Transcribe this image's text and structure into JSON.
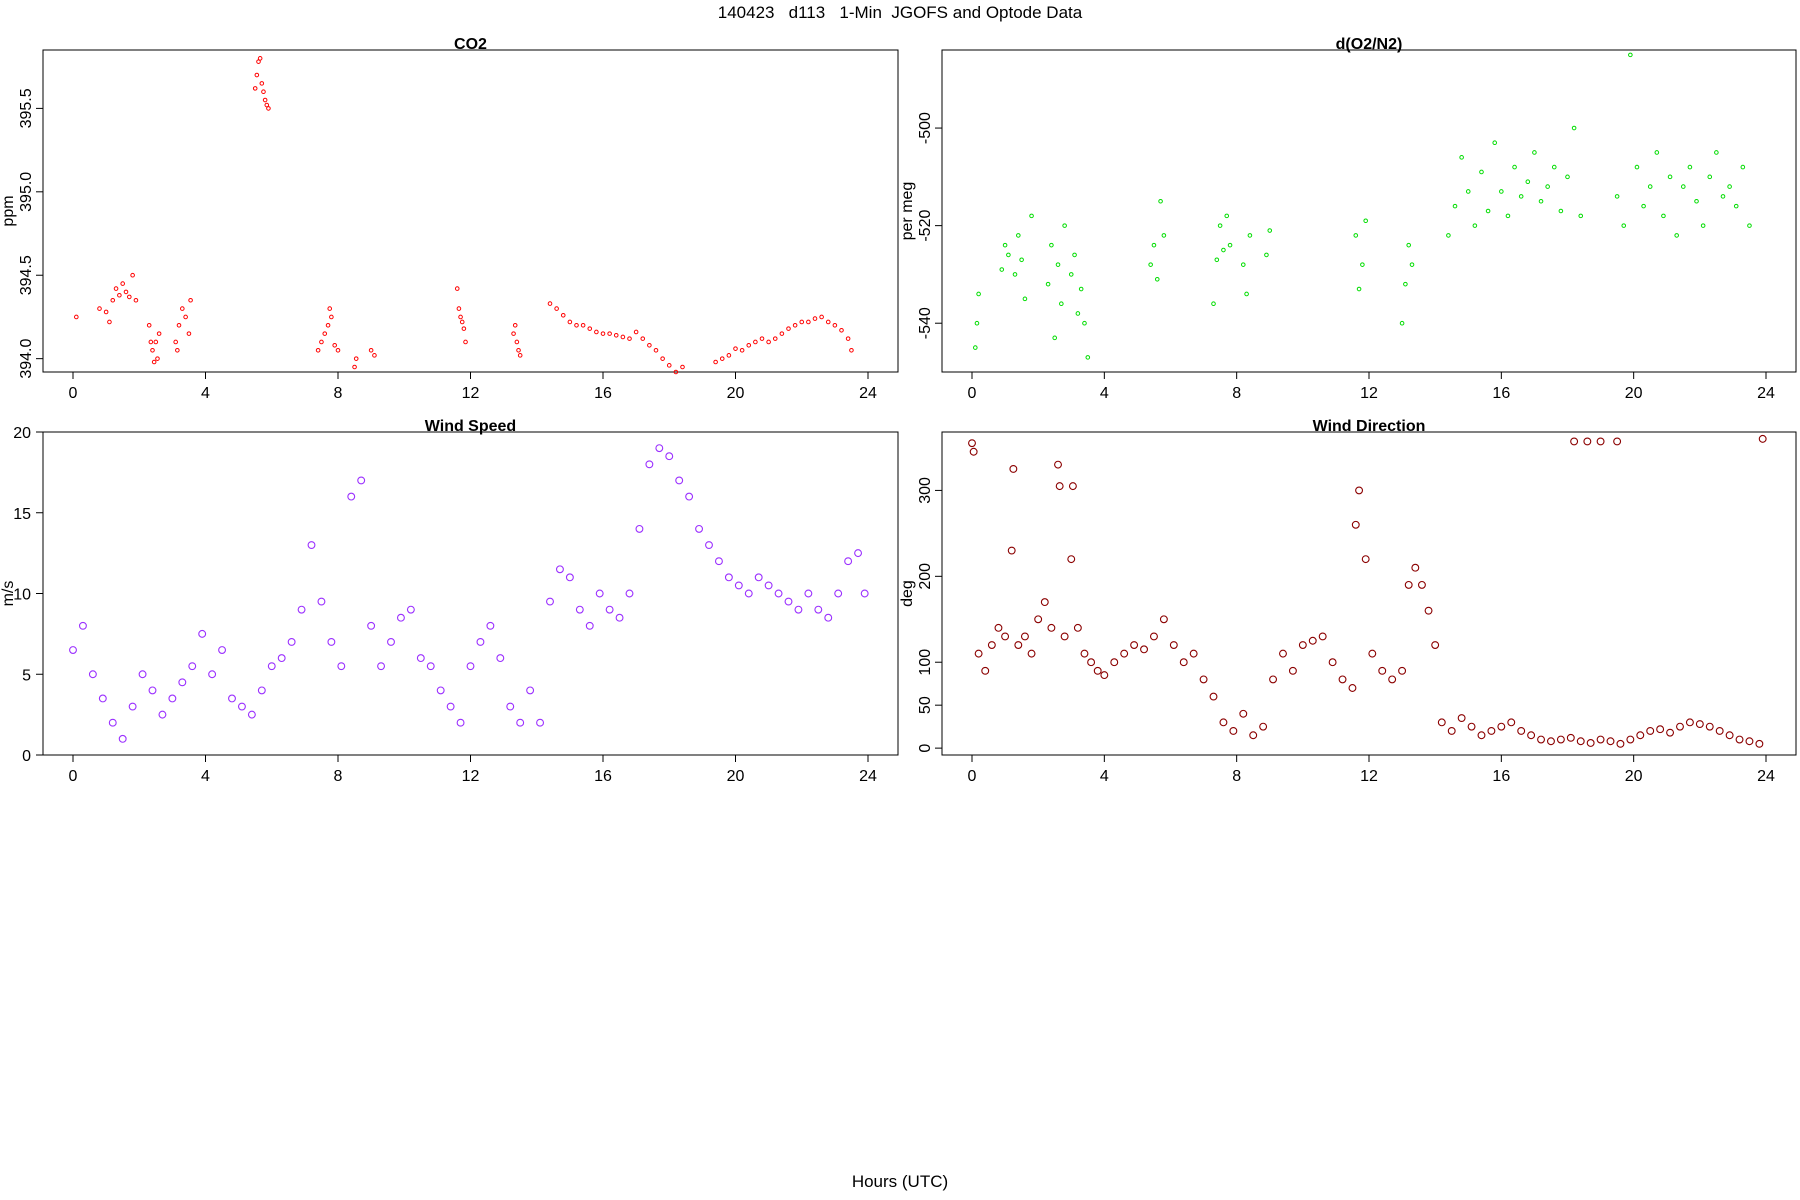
{
  "figure": {
    "title": "140423   d113   1-Min  JGOFS and Optode Data",
    "xlabel": "Hours (UTC)"
  },
  "chart_data": [
    {
      "type": "scatter",
      "title": "CO2",
      "ylabel": "ppm",
      "xlabel": "",
      "xlim": [
        0,
        24
      ],
      "ylim": [
        393.92,
        395.85
      ],
      "xticks": [
        0,
        4,
        8,
        12,
        16,
        20,
        24
      ],
      "yticks": [
        394.0,
        394.5,
        395.0,
        395.5
      ],
      "ytick_labels": [
        "394.0",
        "394.5",
        "395.0",
        "395.5"
      ],
      "color": "#ff0000",
      "marker": "small-circle",
      "series": [
        {
          "x": [
            0.1,
            0.8,
            1.0,
            1.1,
            1.2,
            1.3,
            1.4,
            1.5,
            1.6,
            1.7,
            1.8,
            1.9,
            2.3,
            2.35,
            2.4,
            2.45,
            2.5,
            2.55,
            2.6,
            3.1,
            3.15,
            3.2,
            3.3,
            3.4,
            3.5,
            3.55,
            5.5,
            5.55,
            5.6,
            5.65,
            5.7,
            5.75,
            5.8,
            5.85,
            5.9,
            7.4,
            7.5,
            7.6,
            7.7,
            7.75,
            7.8,
            7.9,
            8.0,
            8.5,
            8.55,
            9.0,
            9.1,
            11.6,
            11.65,
            11.7,
            11.75,
            11.8,
            11.85,
            13.3,
            13.35,
            13.4,
            13.45,
            13.5,
            14.4,
            14.6,
            14.8,
            15.0,
            15.2,
            15.4,
            15.6,
            15.8,
            16.0,
            16.2,
            16.4,
            16.6,
            16.8,
            17.0,
            17.2,
            17.4,
            17.6,
            17.8,
            18.0,
            18.2,
            18.4,
            19.4,
            19.6,
            19.8,
            20.0,
            20.2,
            20.4,
            20.6,
            20.8,
            21.0,
            21.2,
            21.4,
            21.6,
            21.8,
            22.0,
            22.2,
            22.4,
            22.6,
            22.8,
            23.0,
            23.2,
            23.4,
            23.5
          ],
          "y": [
            394.25,
            394.3,
            394.28,
            394.22,
            394.35,
            394.42,
            394.38,
            394.45,
            394.4,
            394.37,
            394.5,
            394.35,
            394.2,
            394.1,
            394.05,
            393.98,
            394.1,
            394.0,
            394.15,
            394.1,
            394.05,
            394.2,
            394.3,
            394.25,
            394.15,
            394.35,
            395.62,
            395.7,
            395.78,
            395.8,
            395.65,
            395.6,
            395.55,
            395.52,
            395.5,
            394.05,
            394.1,
            394.15,
            394.2,
            394.3,
            394.25,
            394.08,
            394.05,
            393.95,
            394.0,
            394.05,
            394.02,
            394.42,
            394.3,
            394.25,
            394.22,
            394.18,
            394.1,
            394.15,
            394.2,
            394.1,
            394.05,
            394.02,
            394.33,
            394.3,
            394.26,
            394.22,
            394.2,
            394.2,
            394.18,
            394.16,
            394.15,
            394.15,
            394.14,
            394.13,
            394.12,
            394.16,
            394.12,
            394.08,
            394.05,
            394.0,
            393.96,
            393.92,
            393.95,
            393.98,
            394.0,
            394.02,
            394.06,
            394.05,
            394.08,
            394.1,
            394.12,
            394.1,
            394.12,
            394.15,
            394.18,
            394.2,
            394.22,
            394.22,
            394.24,
            394.25,
            394.22,
            394.2,
            394.17,
            394.12,
            394.05
          ]
        }
      ]
    },
    {
      "type": "scatter",
      "title": "d(O2/N2)",
      "ylabel": "per meg",
      "xlabel": "",
      "xlim": [
        0,
        24
      ],
      "ylim": [
        -550,
        -484
      ],
      "xticks": [
        0,
        4,
        8,
        12,
        16,
        20,
        24
      ],
      "yticks": [
        -540,
        -520,
        -500
      ],
      "ytick_labels": [
        "-540",
        "-520",
        "-500"
      ],
      "color": "#00dd00",
      "marker": "small-circle",
      "series": [
        {
          "x": [
            0.1,
            0.15,
            0.2,
            0.9,
            1.0,
            1.1,
            1.3,
            1.4,
            1.5,
            1.6,
            1.8,
            2.3,
            2.4,
            2.5,
            2.6,
            2.7,
            2.8,
            3.0,
            3.1,
            3.2,
            3.3,
            3.4,
            3.5,
            5.4,
            5.5,
            5.6,
            5.7,
            5.8,
            7.3,
            7.4,
            7.5,
            7.6,
            7.7,
            7.8,
            8.2,
            8.3,
            8.4,
            8.9,
            9.0,
            11.6,
            11.7,
            11.8,
            11.9,
            13.0,
            13.1,
            13.2,
            13.3,
            14.4,
            14.6,
            14.8,
            15.0,
            15.2,
            15.4,
            15.6,
            15.8,
            16.0,
            16.2,
            16.4,
            16.6,
            16.8,
            17.0,
            17.2,
            17.4,
            17.6,
            17.8,
            18.0,
            18.2,
            18.4,
            19.5,
            19.7,
            19.9,
            20.1,
            20.3,
            20.5,
            20.7,
            20.9,
            21.1,
            21.3,
            21.5,
            21.7,
            21.9,
            22.1,
            22.3,
            22.5,
            22.7,
            22.9,
            23.1,
            23.3,
            23.5
          ],
          "y": [
            -545,
            -540,
            -534,
            -529,
            -524,
            -526,
            -530,
            -522,
            -527,
            -535,
            -518,
            -532,
            -524,
            -543,
            -528,
            -536,
            -520,
            -530,
            -526,
            -538,
            -533,
            -540,
            -547,
            -528,
            -524,
            -531,
            -515,
            -522,
            -536,
            -527,
            -520,
            -525,
            -518,
            -524,
            -528,
            -534,
            -522,
            -526,
            -521,
            -522,
            -533,
            -528,
            -519,
            -540,
            -532,
            -524,
            -528,
            -522,
            -516,
            -506,
            -513,
            -520,
            -509,
            -517,
            -503,
            -513,
            -518,
            -508,
            -514,
            -511,
            -505,
            -515,
            -512,
            -508,
            -517,
            -510,
            -500,
            -518,
            -514,
            -520,
            -485,
            -508,
            -516,
            -512,
            -505,
            -518,
            -510,
            -522,
            -512,
            -508,
            -515,
            -520,
            -510,
            -505,
            -514,
            -512,
            -516,
            -508,
            -520
          ]
        }
      ]
    },
    {
      "type": "scatter",
      "title": "Wind Speed",
      "ylabel": "m/s",
      "xlabel": "",
      "xlim": [
        0,
        24
      ],
      "ylim": [
        0,
        20
      ],
      "xticks": [
        0,
        4,
        8,
        12,
        16,
        20,
        24
      ],
      "yticks": [
        0,
        5,
        10,
        15,
        20
      ],
      "ytick_labels": [
        "0",
        "5",
        "10",
        "15",
        "20"
      ],
      "color": "#9b30ff",
      "marker": "circle",
      "series": [
        {
          "x": [
            0.0,
            0.3,
            0.6,
            0.9,
            1.2,
            1.5,
            1.8,
            2.1,
            2.4,
            2.7,
            3.0,
            3.3,
            3.6,
            3.9,
            4.2,
            4.5,
            4.8,
            5.1,
            5.4,
            5.7,
            6.0,
            6.3,
            6.6,
            6.9,
            7.2,
            7.5,
            7.8,
            8.1,
            8.4,
            8.7,
            9.0,
            9.3,
            9.6,
            9.9,
            10.2,
            10.5,
            10.8,
            11.1,
            11.4,
            11.7,
            12.0,
            12.3,
            12.6,
            12.9,
            13.2,
            13.5,
            13.8,
            14.1,
            14.4,
            14.7,
            15.0,
            15.3,
            15.6,
            15.9,
            16.2,
            16.5,
            16.8,
            17.1,
            17.4,
            17.7,
            18.0,
            18.3,
            18.6,
            18.9,
            19.2,
            19.5,
            19.8,
            20.1,
            20.4,
            20.7,
            21.0,
            21.3,
            21.6,
            21.9,
            22.2,
            22.5,
            22.8,
            23.1,
            23.4,
            23.7,
            23.9
          ],
          "y": [
            6.5,
            8.0,
            5.0,
            3.5,
            2.0,
            1.0,
            3.0,
            5.0,
            4.0,
            2.5,
            3.5,
            4.5,
            5.5,
            7.5,
            5.0,
            6.5,
            3.5,
            3.0,
            2.5,
            4.0,
            5.5,
            6.0,
            7.0,
            9.0,
            13.0,
            9.5,
            7.0,
            5.5,
            16.0,
            17.0,
            8.0,
            5.5,
            7.0,
            8.5,
            9.0,
            6.0,
            5.5,
            4.0,
            3.0,
            2.0,
            5.5,
            7.0,
            8.0,
            6.0,
            3.0,
            2.0,
            4.0,
            2.0,
            9.5,
            11.5,
            11.0,
            9.0,
            8.0,
            10.0,
            9.0,
            8.5,
            10.0,
            14.0,
            18.0,
            19.0,
            18.5,
            17.0,
            16.0,
            14.0,
            13.0,
            12.0,
            11.0,
            10.5,
            10.0,
            11.0,
            10.5,
            10.0,
            9.5,
            9.0,
            10.0,
            9.0,
            8.5,
            10.0,
            12.0,
            12.5,
            10.0
          ]
        }
      ]
    },
    {
      "type": "scatter",
      "title": "Wind Direction",
      "ylabel": "deg",
      "xlabel": "",
      "xlim": [
        0,
        24
      ],
      "ylim": [
        -8,
        368
      ],
      "xticks": [
        0,
        4,
        8,
        12,
        16,
        20,
        24
      ],
      "yticks": [
        0,
        50,
        100,
        200,
        300
      ],
      "ytick_labels": [
        "0",
        "50",
        "100",
        "200",
        "300"
      ],
      "color": "#8b0000",
      "marker": "circle",
      "series": [
        {
          "x": [
            0.0,
            0.05,
            0.2,
            0.4,
            0.6,
            0.8,
            1.0,
            1.2,
            1.25,
            1.4,
            1.6,
            1.8,
            2.0,
            2.2,
            2.4,
            2.6,
            2.65,
            2.8,
            3.0,
            3.05,
            3.2,
            3.4,
            3.6,
            3.8,
            4.0,
            4.3,
            4.6,
            4.9,
            5.2,
            5.5,
            5.8,
            6.1,
            6.4,
            6.7,
            7.0,
            7.3,
            7.6,
            7.9,
            8.2,
            8.5,
            8.8,
            9.1,
            9.4,
            9.7,
            10.0,
            10.3,
            10.6,
            10.9,
            11.2,
            11.5,
            11.6,
            11.7,
            11.9,
            12.1,
            12.4,
            12.7,
            13.0,
            13.2,
            13.4,
            13.6,
            13.8,
            14.0,
            14.2,
            14.5,
            14.8,
            15.1,
            15.4,
            15.7,
            16.0,
            16.3,
            16.6,
            16.9,
            17.2,
            17.5,
            17.8,
            18.1,
            18.4,
            18.7,
            19.0,
            19.3,
            19.6,
            19.9,
            20.2,
            20.5,
            20.8,
            21.1,
            21.4,
            21.7,
            22.0,
            22.3,
            22.6,
            22.9,
            23.2,
            23.5,
            23.8,
            18.2,
            18.6,
            19.0,
            19.5,
            23.9
          ],
          "y": [
            355,
            345,
            110,
            90,
            120,
            140,
            130,
            230,
            325,
            120,
            130,
            110,
            150,
            170,
            140,
            330,
            305,
            130,
            220,
            305,
            140,
            110,
            100,
            90,
            85,
            100,
            110,
            120,
            115,
            130,
            150,
            120,
            100,
            110,
            80,
            60,
            30,
            20,
            40,
            15,
            25,
            80,
            110,
            90,
            120,
            125,
            130,
            100,
            80,
            70,
            260,
            300,
            220,
            110,
            90,
            80,
            90,
            190,
            210,
            190,
            160,
            120,
            30,
            20,
            35,
            25,
            15,
            20,
            25,
            30,
            20,
            15,
            10,
            8,
            10,
            12,
            8,
            6,
            10,
            8,
            5,
            10,
            15,
            20,
            22,
            18,
            25,
            30,
            28,
            25,
            20,
            15,
            10,
            8,
            5,
            357,
            357,
            357,
            357,
            360
          ]
        }
      ]
    }
  ]
}
